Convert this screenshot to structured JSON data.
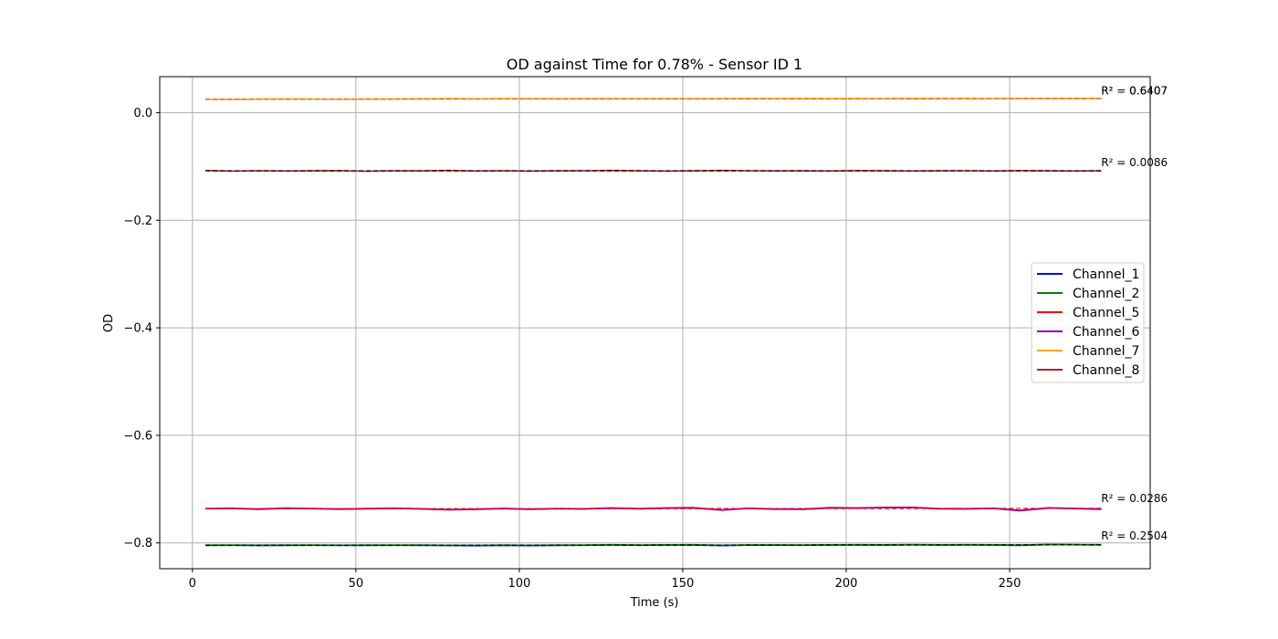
{
  "chart_data": {
    "type": "line",
    "title": "OD against Time for 0.78% - Sensor ID 1",
    "xlabel": "Time (s)",
    "ylabel": "OD",
    "xlim": [
      -10,
      293
    ],
    "ylim": [
      -0.848,
      0.067
    ],
    "xticks": [
      0,
      50,
      100,
      150,
      200,
      250
    ],
    "xtick_labels": [
      "0",
      "50",
      "100",
      "150",
      "200",
      "250"
    ],
    "yticks": [
      0.0,
      -0.2,
      -0.4,
      -0.6,
      -0.8
    ],
    "ytick_labels": [
      "0.0",
      "−0.2",
      "−0.4",
      "−0.6",
      "−0.8"
    ],
    "grid": true,
    "legend_position": "center-right",
    "x": [
      4,
      12,
      20,
      29,
      37,
      45,
      53,
      62,
      70,
      78,
      87,
      95,
      103,
      112,
      120,
      128,
      137,
      145,
      153,
      162,
      170,
      178,
      187,
      195,
      203,
      212,
      220,
      228,
      237,
      245,
      253,
      262,
      270,
      278
    ],
    "series": [
      {
        "name": "Channel_1",
        "color": "#0000ff",
        "values": [
          -0.8045,
          -0.8043,
          -0.8048,
          -0.8046,
          -0.8044,
          -0.8047,
          -0.8045,
          -0.8043,
          -0.8046,
          -0.8048,
          -0.8052,
          -0.8046,
          -0.805,
          -0.8045,
          -0.8044,
          -0.8038,
          -0.8044,
          -0.804,
          -0.8038,
          -0.805,
          -0.8042,
          -0.8042,
          -0.8044,
          -0.804,
          -0.8039,
          -0.804,
          -0.8036,
          -0.804,
          -0.8038,
          -0.804,
          -0.8045,
          -0.803,
          -0.8034,
          -0.8038
        ]
      },
      {
        "name": "Channel_2",
        "color": "#008000",
        "values": [
          -0.804,
          -0.8038,
          -0.8042,
          -0.804,
          -0.8039,
          -0.8042,
          -0.804,
          -0.8038,
          -0.8041,
          -0.8043,
          -0.8046,
          -0.8041,
          -0.8044,
          -0.804,
          -0.8039,
          -0.8034,
          -0.8039,
          -0.8036,
          -0.8034,
          -0.8044,
          -0.8037,
          -0.8037,
          -0.8039,
          -0.8035,
          -0.8034,
          -0.8035,
          -0.8032,
          -0.8035,
          -0.8033,
          -0.8035,
          -0.804,
          -0.8026,
          -0.803,
          -0.8033
        ]
      },
      {
        "name": "Channel_5",
        "color": "#ff0000",
        "values": [
          -0.736,
          -0.7355,
          -0.737,
          -0.7352,
          -0.736,
          -0.7368,
          -0.7362,
          -0.7355,
          -0.7365,
          -0.738,
          -0.7372,
          -0.7358,
          -0.7372,
          -0.736,
          -0.7365,
          -0.735,
          -0.7362,
          -0.735,
          -0.7345,
          -0.7385,
          -0.7355,
          -0.7368,
          -0.7372,
          -0.7345,
          -0.735,
          -0.734,
          -0.7338,
          -0.7362,
          -0.7365,
          -0.7355,
          -0.7395,
          -0.7348,
          -0.7358,
          -0.737
        ]
      },
      {
        "name": "Channel_6",
        "color": "#8b00b8",
        "values": [
          -0.7365,
          -0.736,
          -0.7375,
          -0.7357,
          -0.7365,
          -0.7373,
          -0.7367,
          -0.736,
          -0.737,
          -0.7385,
          -0.7377,
          -0.7363,
          -0.7377,
          -0.7365,
          -0.737,
          -0.7355,
          -0.7367,
          -0.7355,
          -0.735,
          -0.739,
          -0.736,
          -0.7373,
          -0.7377,
          -0.735,
          -0.7355,
          -0.7345,
          -0.7343,
          -0.7367,
          -0.737,
          -0.736,
          -0.74,
          -0.7353,
          -0.7363,
          -0.7375
        ]
      },
      {
        "name": "Channel_7",
        "color": "#ffa500",
        "values": [
          0.025,
          0.0248,
          0.0252,
          0.0256,
          0.0254,
          0.025,
          0.0252,
          0.0254,
          0.0258,
          0.0262,
          0.0256,
          0.0262,
          0.026,
          0.0258,
          0.026,
          0.0262,
          0.026,
          0.0262,
          0.026,
          0.0262,
          0.0264,
          0.0262,
          0.0264,
          0.0262,
          0.0264,
          0.0262,
          0.0264,
          0.0262,
          0.0264,
          0.0262,
          0.0264,
          0.0266,
          0.0264,
          0.0266
        ]
      },
      {
        "name": "Channel_8",
        "color": "#b22222",
        "values": [
          -0.1075,
          -0.1085,
          -0.1078,
          -0.1083,
          -0.108,
          -0.1076,
          -0.1088,
          -0.108,
          -0.1082,
          -0.1074,
          -0.1083,
          -0.1078,
          -0.1085,
          -0.108,
          -0.1078,
          -0.1074,
          -0.108,
          -0.1086,
          -0.108,
          -0.1074,
          -0.1078,
          -0.1082,
          -0.108,
          -0.1084,
          -0.1076,
          -0.108,
          -0.1084,
          -0.108,
          -0.1078,
          -0.1084,
          -0.1076,
          -0.108,
          -0.1084,
          -0.108
        ]
      }
    ],
    "fits": [
      {
        "color": "#000000",
        "values": [
          -0.8046,
          -0.8036
        ]
      },
      {
        "color": "#ff0000",
        "values": [
          -0.7365,
          -0.7358
        ]
      },
      {
        "color": "#3a6fd8",
        "values": [
          0.025,
          0.0266
        ]
      },
      {
        "color": "#ff6600",
        "values": [
          0.0251,
          0.0265
        ]
      },
      {
        "color": "#000000",
        "values": [
          -0.108,
          -0.1081
        ]
      }
    ],
    "annotations": [
      {
        "text": "R² = 0.6407",
        "x": 278,
        "y": 0.0335
      },
      {
        "text": "R² = 0.6407",
        "x": 278,
        "y": 0.0335
      },
      {
        "text": "R² = 0.0086",
        "x": 278,
        "y": -0.099
      },
      {
        "text": "R² = 0.0286",
        "x": 278,
        "y": -0.7245
      },
      {
        "text": "R² = 0.2504",
        "x": 278,
        "y": -0.7935
      }
    ]
  }
}
